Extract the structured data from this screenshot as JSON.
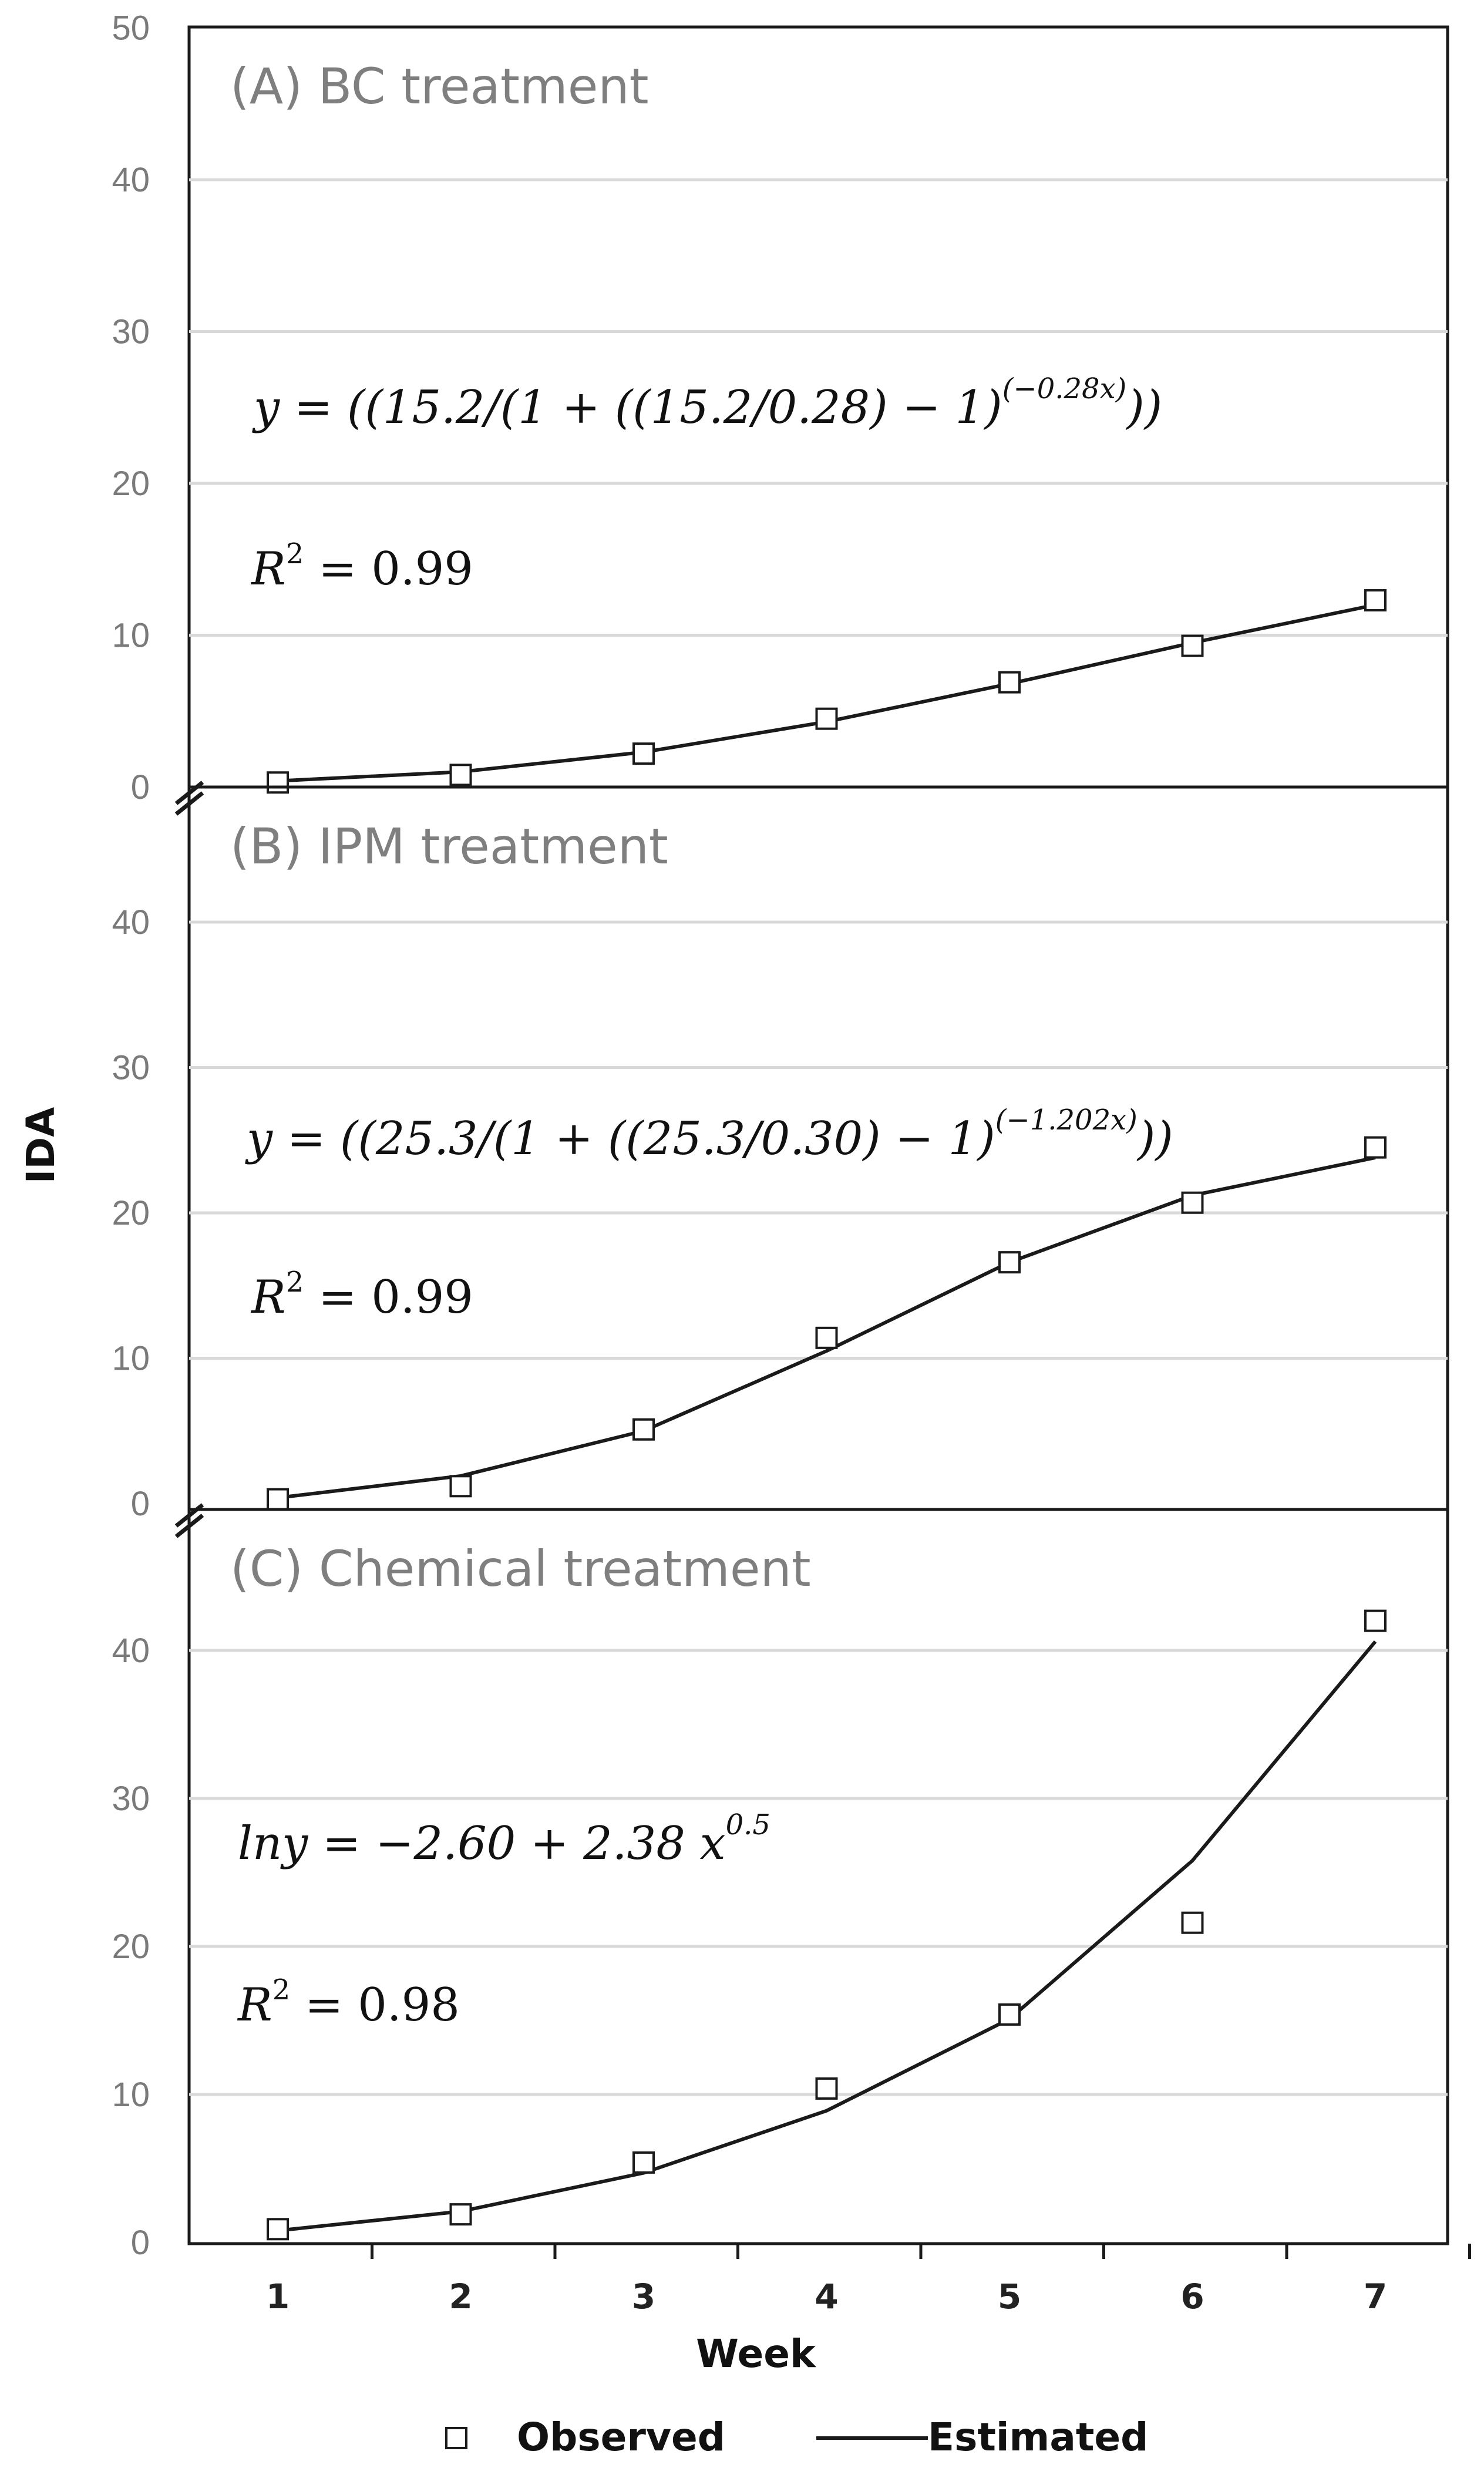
{
  "chart_data": [
    {
      "type": "line",
      "title": "(A) BC treatment",
      "categories": [
        1,
        2,
        3,
        4,
        5,
        6,
        7
      ],
      "ylim": [
        0,
        50
      ],
      "yticks": [
        0,
        10,
        20,
        30,
        40,
        50
      ],
      "series": [
        {
          "name": "Observed",
          "marker": "square",
          "values": [
            0.3,
            0.8,
            2.2,
            4.5,
            6.9,
            9.3,
            12.3
          ]
        },
        {
          "name": "Estimated",
          "style": "line",
          "values": [
            0.4,
            1.0,
            2.3,
            4.3,
            6.8,
            9.5,
            12.0
          ]
        }
      ],
      "equation": {
        "lhs": "y = ((15.2/(1 + ((15.2/0.28) − 1)",
        "exp": "(−0.28x)",
        "tail": "))"
      },
      "r2": {
        "label": "R",
        "sup": "2",
        "value": " = 0.99"
      },
      "grid": true
    },
    {
      "type": "line",
      "title": "(B) IPM treatment",
      "categories": [
        1,
        2,
        3,
        4,
        5,
        6,
        7
      ],
      "ylim": [
        0,
        50
      ],
      "yticks": [
        0,
        10,
        20,
        30,
        40
      ],
      "series": [
        {
          "name": "Observed",
          "marker": "square",
          "values": [
            0.3,
            1.2,
            5.1,
            11.4,
            16.6,
            20.7,
            24.5
          ]
        },
        {
          "name": "Estimated",
          "style": "line",
          "values": [
            0.4,
            1.9,
            5.0,
            10.5,
            16.6,
            21.2,
            23.8
          ]
        }
      ],
      "equation": {
        "lhs": "y = ((25.3/(1 + ((25.3/0.30) − 1)",
        "exp": "(−1.202x)",
        "tail": "))"
      },
      "r2": {
        "label": "R",
        "sup": "2",
        "value": " = 0.99"
      },
      "grid": true
    },
    {
      "type": "line",
      "title": "(C) Chemical treatment",
      "categories": [
        1,
        2,
        3,
        4,
        5,
        6,
        7
      ],
      "ylim": [
        0,
        50
      ],
      "yticks": [
        0,
        10,
        20,
        30,
        40
      ],
      "series": [
        {
          "name": "Observed",
          "marker": "square",
          "values": [
            0.9,
            1.9,
            5.4,
            10.4,
            15.4,
            21.6,
            42.0
          ]
        },
        {
          "name": "Estimated",
          "style": "line",
          "values": [
            0.8,
            2.1,
            4.7,
            8.9,
            15.1,
            25.8,
            40.6
          ]
        }
      ],
      "equation": {
        "lhs": "lny = −2.60 + 2.38 x",
        "exp": "0.5",
        "tail": ""
      },
      "r2": {
        "label": "R",
        "sup": "2",
        "value": " = 0.98"
      },
      "grid": true
    }
  ],
  "axes": {
    "xlabel": "Week",
    "ylabel": "IDA"
  },
  "legend": {
    "observed": "Observed",
    "estimated": "Estimated",
    "placement": "bottom-center"
  },
  "colors": {
    "line": "#1a1a1a",
    "grid": "#d9d9d9",
    "axis": "#1a1a1a",
    "tick_text": "#7a7a7a",
    "title_text": "#7f7f7f"
  }
}
